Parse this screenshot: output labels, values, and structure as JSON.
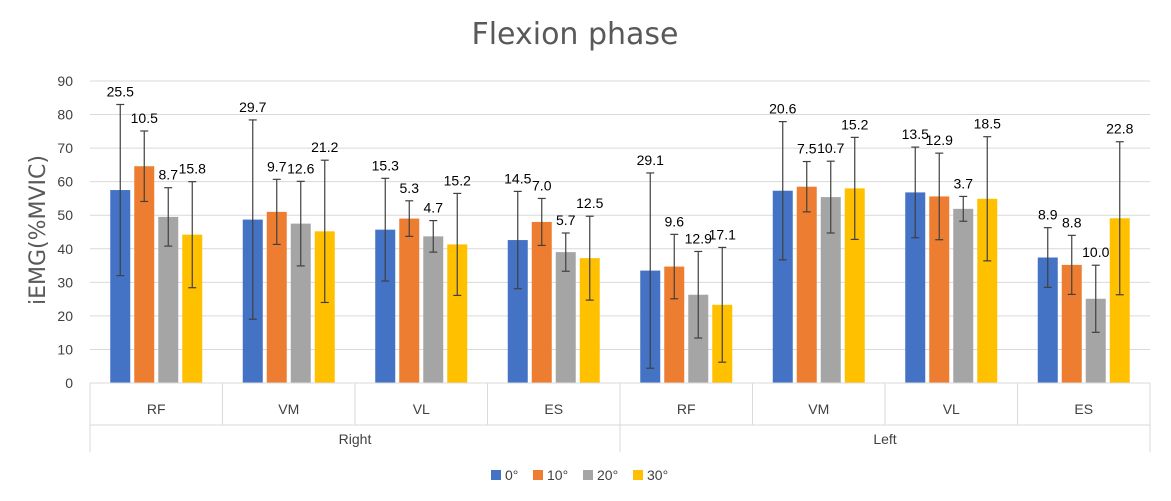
{
  "chart_data": {
    "type": "bar",
    "title": "Flexion phase",
    "xlabel": "",
    "ylabel": "iEMG(%MVIC)",
    "ylim": [
      0,
      90
    ],
    "yticks": [
      "0",
      "10",
      "20",
      "30",
      "40",
      "50",
      "60",
      "70",
      "80",
      "90"
    ],
    "groups": [
      {
        "label": "Right",
        "categories": [
          "RF",
          "VM",
          "VL",
          "ES"
        ]
      },
      {
        "label": "Left",
        "categories": [
          "RF",
          "VM",
          "VL",
          "ES"
        ]
      }
    ],
    "categories": [
      "RF",
      "VM",
      "VL",
      "ES",
      "RF",
      "VM",
      "VL",
      "ES"
    ],
    "series": [
      {
        "name": "0°",
        "color": "#4472c4",
        "values": [
          57.5,
          48.7,
          45.7,
          42.6,
          33.5,
          57.3,
          56.8,
          37.4
        ],
        "errors": [
          25.5,
          29.7,
          15.3,
          14.5,
          29.1,
          20.6,
          13.5,
          8.9
        ],
        "labels": [
          "25.5",
          "29.7",
          "15.3",
          "14.5",
          "29.1",
          "20.6",
          "13.5",
          "8.9"
        ]
      },
      {
        "name": "10°",
        "color": "#ed7d31",
        "values": [
          64.6,
          51.0,
          49.0,
          48.0,
          34.7,
          58.5,
          55.6,
          35.2
        ],
        "errors": [
          10.5,
          9.7,
          5.3,
          7.0,
          9.6,
          7.5,
          12.9,
          8.8
        ],
        "labels": [
          "10.5",
          "9.7",
          "5.3",
          "7.0",
          "9.6",
          "7.5",
          "12.9",
          "8.8"
        ]
      },
      {
        "name": "20°",
        "color": "#a5a5a5",
        "values": [
          49.5,
          47.5,
          43.7,
          39.0,
          26.3,
          55.4,
          51.9,
          25.1
        ],
        "errors": [
          8.7,
          12.6,
          4.7,
          5.7,
          12.9,
          10.7,
          3.7,
          10.0
        ],
        "labels": [
          "8.7",
          "12.6",
          "4.7",
          "5.7",
          "12.9",
          "10.7",
          "3.7",
          "10.0"
        ]
      },
      {
        "name": "30°",
        "color": "#ffc000",
        "values": [
          44.2,
          45.2,
          41.3,
          37.2,
          23.3,
          58.0,
          54.9,
          49.1
        ],
        "errors": [
          15.8,
          21.2,
          15.2,
          12.5,
          17.1,
          15.2,
          18.5,
          22.8
        ],
        "labels": [
          "15.8",
          "21.2",
          "15.2",
          "12.5",
          "17.1",
          "15.2",
          "18.5",
          "22.8"
        ]
      }
    ],
    "legend_position": "bottom",
    "grid": true
  }
}
